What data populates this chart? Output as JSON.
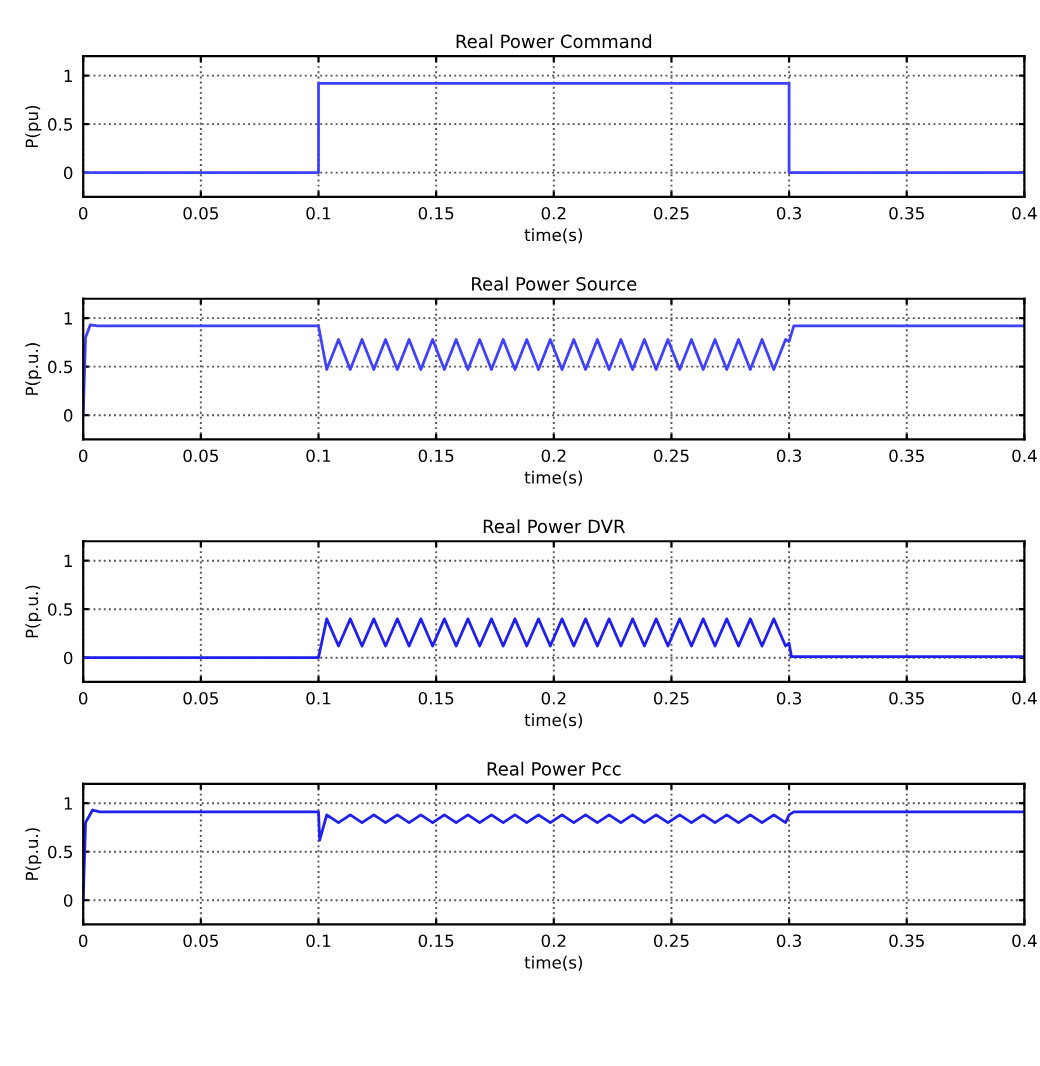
{
  "chart_data": [
    {
      "type": "line",
      "title": "Real Power Command",
      "xlabel": "time(s)",
      "ylabel": "P(pu)",
      "xlim": [
        0,
        0.4
      ],
      "ylim": [
        -0.25,
        1.2
      ],
      "xticks": [
        0,
        0.05,
        0.1,
        0.15,
        0.2,
        0.25,
        0.3,
        0.35,
        0.4
      ],
      "yticks": [
        0,
        0.5,
        1
      ],
      "grid": true,
      "line_style": "solid",
      "series": [
        {
          "color": "#4040ff",
          "x": [
            0,
            0.1,
            0.1,
            0.3,
            0.3,
            0.4
          ],
          "values": [
            0,
            0,
            0.92,
            0.92,
            0,
            0
          ]
        }
      ]
    },
    {
      "type": "line",
      "title": "Real Power Source",
      "xlabel": "time(s)",
      "ylabel": "P(p.u.)",
      "xlim": [
        0,
        0.4
      ],
      "ylim": [
        -0.25,
        1.2
      ],
      "xticks": [
        0,
        0.05,
        0.1,
        0.15,
        0.2,
        0.25,
        0.3,
        0.35,
        0.4
      ],
      "yticks": [
        0,
        0.5,
        1
      ],
      "grid": true,
      "line_style": "solid",
      "series": [
        {
          "color": "#4040ff",
          "x": [
            0,
            0.001,
            0.003,
            0.006,
            0.1,
            0.1035,
            0.1085,
            0.1135,
            0.1185,
            0.1235,
            0.1285,
            0.1335,
            0.1385,
            0.1435,
            0.1485,
            0.1535,
            0.1585,
            0.1635,
            0.1685,
            0.1735,
            0.1785,
            0.1835,
            0.1885,
            0.1935,
            0.1985,
            0.2035,
            0.2085,
            0.2135,
            0.2185,
            0.2235,
            0.2285,
            0.2335,
            0.2385,
            0.2435,
            0.2485,
            0.2535,
            0.2585,
            0.2635,
            0.2685,
            0.2735,
            0.2785,
            0.2835,
            0.2885,
            0.2935,
            0.2985,
            0.3,
            0.302,
            0.4
          ],
          "values": [
            0,
            0.8,
            0.93,
            0.92,
            0.92,
            0.47,
            0.78,
            0.47,
            0.78,
            0.47,
            0.78,
            0.47,
            0.78,
            0.47,
            0.78,
            0.47,
            0.78,
            0.47,
            0.78,
            0.47,
            0.78,
            0.47,
            0.78,
            0.47,
            0.78,
            0.47,
            0.78,
            0.47,
            0.78,
            0.47,
            0.78,
            0.47,
            0.78,
            0.47,
            0.78,
            0.47,
            0.78,
            0.47,
            0.78,
            0.47,
            0.78,
            0.47,
            0.78,
            0.47,
            0.78,
            0.76,
            0.92,
            0.92
          ]
        }
      ]
    },
    {
      "type": "line",
      "title": "Real Power DVR",
      "xlabel": "time(s)",
      "ylabel": "P(p.u.)",
      "xlim": [
        0,
        0.4
      ],
      "ylim": [
        -0.25,
        1.2
      ],
      "xticks": [
        0,
        0.05,
        0.1,
        0.15,
        0.2,
        0.25,
        0.3,
        0.35,
        0.4
      ],
      "yticks": [
        0,
        0.5,
        1
      ],
      "grid": true,
      "line_style": "solid",
      "series": [
        {
          "color": "#2020ee",
          "x": [
            0,
            0.1,
            0.1035,
            0.1085,
            0.1135,
            0.1185,
            0.1235,
            0.1285,
            0.1335,
            0.1385,
            0.1435,
            0.1485,
            0.1535,
            0.1585,
            0.1635,
            0.1685,
            0.1735,
            0.1785,
            0.1835,
            0.1885,
            0.1935,
            0.1985,
            0.2035,
            0.2085,
            0.2135,
            0.2185,
            0.2235,
            0.2285,
            0.2335,
            0.2385,
            0.2435,
            0.2485,
            0.2535,
            0.2585,
            0.2635,
            0.2685,
            0.2735,
            0.2785,
            0.2835,
            0.2885,
            0.2935,
            0.2985,
            0.3,
            0.301,
            0.4
          ],
          "values": [
            0,
            0,
            0.4,
            0.12,
            0.4,
            0.12,
            0.4,
            0.12,
            0.4,
            0.12,
            0.4,
            0.12,
            0.4,
            0.12,
            0.4,
            0.12,
            0.4,
            0.12,
            0.4,
            0.12,
            0.4,
            0.12,
            0.4,
            0.12,
            0.4,
            0.12,
            0.4,
            0.12,
            0.4,
            0.12,
            0.4,
            0.12,
            0.4,
            0.12,
            0.4,
            0.12,
            0.4,
            0.12,
            0.4,
            0.12,
            0.4,
            0.12,
            0.15,
            0.01,
            0.01
          ]
        }
      ]
    },
    {
      "type": "line",
      "title": "Real Power Pcc",
      "xlabel": "time(s)",
      "ylabel": "P(p.u.)",
      "xlim": [
        0,
        0.4
      ],
      "ylim": [
        -0.25,
        1.2
      ],
      "xticks": [
        0,
        0.05,
        0.1,
        0.15,
        0.2,
        0.25,
        0.3,
        0.35,
        0.4
      ],
      "yticks": [
        0,
        0.5,
        1
      ],
      "grid": true,
      "line_style": "solid",
      "series": [
        {
          "color": "#2020ee",
          "x": [
            0,
            0.001,
            0.004,
            0.007,
            0.1,
            0.1005,
            0.1035,
            0.1085,
            0.1135,
            0.1185,
            0.1235,
            0.1285,
            0.1335,
            0.1385,
            0.1435,
            0.1485,
            0.1535,
            0.1585,
            0.1635,
            0.1685,
            0.1735,
            0.1785,
            0.1835,
            0.1885,
            0.1935,
            0.1985,
            0.2035,
            0.2085,
            0.2135,
            0.2185,
            0.2235,
            0.2285,
            0.2335,
            0.2385,
            0.2435,
            0.2485,
            0.2535,
            0.2585,
            0.2635,
            0.2685,
            0.2735,
            0.2785,
            0.2835,
            0.2885,
            0.2935,
            0.2985,
            0.3,
            0.302,
            0.4
          ],
          "values": [
            0,
            0.8,
            0.93,
            0.91,
            0.91,
            0.62,
            0.88,
            0.8,
            0.88,
            0.8,
            0.88,
            0.8,
            0.88,
            0.8,
            0.88,
            0.8,
            0.88,
            0.8,
            0.88,
            0.8,
            0.88,
            0.8,
            0.88,
            0.8,
            0.88,
            0.8,
            0.88,
            0.8,
            0.88,
            0.8,
            0.88,
            0.8,
            0.88,
            0.8,
            0.88,
            0.8,
            0.88,
            0.8,
            0.88,
            0.8,
            0.88,
            0.8,
            0.88,
            0.8,
            0.88,
            0.8,
            0.88,
            0.91,
            0.91
          ]
        }
      ]
    }
  ]
}
